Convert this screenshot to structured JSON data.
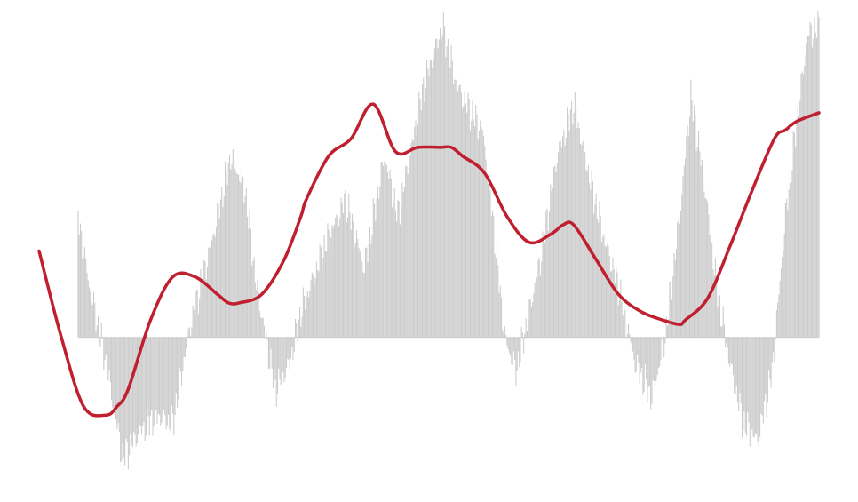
{
  "chart_data": {
    "type": "bar",
    "title": "",
    "xlabel": "",
    "ylabel": "",
    "grid": false,
    "legend": "none",
    "ylim": [
      -1.7,
      3.7
    ],
    "x_range": [
      0,
      700
    ],
    "anchors": [
      [
        0,
        0.0
      ],
      [
        30,
        1.8
      ],
      [
        45,
        0.6
      ],
      [
        60,
        -0.3
      ],
      [
        75,
        -1.4
      ],
      [
        90,
        -1.1
      ],
      [
        105,
        -0.9
      ],
      [
        120,
        -1.0
      ],
      [
        135,
        0.1
      ],
      [
        155,
        1.1
      ],
      [
        172,
        2.1
      ],
      [
        185,
        1.7
      ],
      [
        195,
        0.6
      ],
      [
        212,
        -0.6
      ],
      [
        225,
        -0.3
      ],
      [
        235,
        0.3
      ],
      [
        258,
        1.1
      ],
      [
        275,
        1.6
      ],
      [
        292,
        0.8
      ],
      [
        310,
        2.1
      ],
      [
        322,
        1.4
      ],
      [
        345,
        2.9
      ],
      [
        362,
        3.6
      ],
      [
        375,
        2.9
      ],
      [
        388,
        2.6
      ],
      [
        398,
        2.4
      ],
      [
        408,
        1.3
      ],
      [
        418,
        0.0
      ],
      [
        428,
        -0.4
      ],
      [
        440,
        0.3
      ],
      [
        450,
        0.9
      ],
      [
        465,
        2.1
      ],
      [
        480,
        2.7
      ],
      [
        495,
        1.8
      ],
      [
        508,
        1.1
      ],
      [
        520,
        0.6
      ],
      [
        535,
        -0.3
      ],
      [
        550,
        -0.7
      ],
      [
        562,
        0.0
      ],
      [
        575,
        1.4
      ],
      [
        585,
        2.8
      ],
      [
        597,
        1.8
      ],
      [
        608,
        0.6
      ],
      [
        620,
        -0.3
      ],
      [
        632,
        -1.0
      ],
      [
        645,
        -1.2
      ],
      [
        658,
        -0.4
      ],
      [
        670,
        1.4
      ],
      [
        682,
        2.7
      ],
      [
        690,
        3.5
      ],
      [
        700,
        3.6
      ]
    ],
    "series": [
      {
        "type": "bar",
        "color": "#cccccc",
        "generated_from": "anchors"
      },
      {
        "type": "line",
        "color": "#bf1f2f",
        "x": [
          0,
          20,
          40,
          60,
          70,
          80,
          100,
          120,
          140,
          160,
          170,
          180,
          200,
          220,
          235,
          240,
          260,
          280,
          300,
          320,
          340,
          360,
          370,
          380,
          400,
          420,
          440,
          460,
          470,
          480,
          500,
          520,
          540,
          560,
          575,
          580,
          600,
          620,
          640,
          660,
          670,
          680,
          700
        ],
        "y": [
          1.0,
          0.0,
          -0.8,
          -0.9,
          -0.8,
          -0.6,
          0.2,
          0.7,
          0.7,
          0.5,
          0.4,
          0.4,
          0.5,
          0.9,
          1.4,
          1.6,
          2.1,
          2.3,
          2.7,
          2.15,
          2.2,
          2.2,
          2.2,
          2.1,
          1.9,
          1.4,
          1.1,
          1.2,
          1.3,
          1.3,
          0.9,
          0.5,
          0.3,
          0.2,
          0.15,
          0.2,
          0.45,
          1.05,
          1.7,
          2.3,
          2.4,
          2.5,
          2.6
        ]
      }
    ]
  }
}
